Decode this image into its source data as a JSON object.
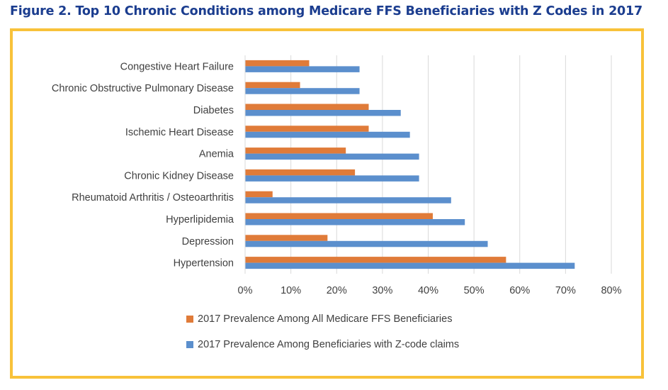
{
  "figure": {
    "title": "Figure 2. Top 10 Chronic Conditions among Medicare FFS Beneficiaries with Z Codes in 2017"
  },
  "colors": {
    "series_all": "#e07b39",
    "series_z": "#5b8fcd",
    "frame": "#f8c23a",
    "title": "#1b3d8f",
    "gridline": "#d9d9d9",
    "text": "#404040"
  },
  "chart_data": {
    "type": "bar",
    "orientation": "horizontal",
    "categories": [
      "Congestive Heart Failure",
      "Chronic Obstructive Pulmonary Disease",
      "Diabetes",
      "Ischemic Heart Disease",
      "Anemia",
      "Chronic Kidney Disease",
      "Rheumatoid Arthritis / Osteoarthritis",
      "Hyperlipidemia",
      "Depression",
      "Hypertension"
    ],
    "series": [
      {
        "name": "2017 Prevalence Among All Medicare FFS Beneficiaries",
        "values": [
          14,
          12,
          27,
          27,
          22,
          24,
          6,
          41,
          18,
          57
        ]
      },
      {
        "name": "2017 Prevalence Among Beneficiaries with Z-code claims",
        "values": [
          25,
          25,
          34,
          36,
          38,
          38,
          45,
          48,
          53,
          72
        ]
      }
    ],
    "xlim": [
      0,
      80
    ],
    "xticks": [
      "0%",
      "10%",
      "20%",
      "30%",
      "40%",
      "50%",
      "60%",
      "70%",
      "80%"
    ],
    "xlabel": "",
    "ylabel": "",
    "grid": "vertical",
    "legend_position": "bottom"
  }
}
